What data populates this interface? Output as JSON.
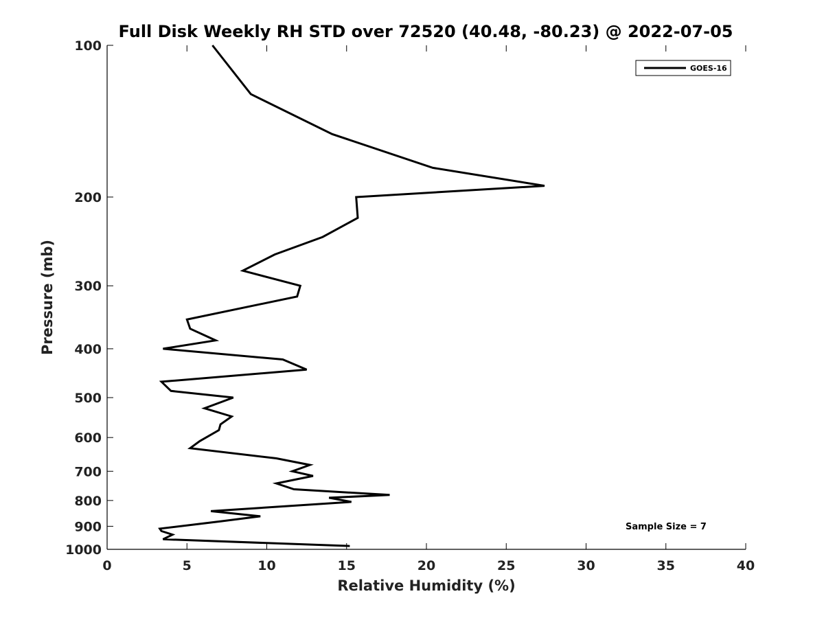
{
  "chart_data": {
    "type": "line",
    "title": "Full Disk Weekly RH STD over 72520 (40.48, -80.23) @ 2022-07-05",
    "xlabel": "Relative Humidity (%)",
    "ylabel": "Pressure (mb)",
    "xlim": [
      0,
      40
    ],
    "ylim": [
      100,
      1000
    ],
    "yscale": "log",
    "xticks": [
      0,
      5,
      10,
      15,
      20,
      25,
      30,
      35,
      40
    ],
    "yticks": [
      100,
      200,
      300,
      400,
      500,
      600,
      700,
      800,
      900,
      1000
    ],
    "legend_position": "top-right",
    "annotation": "Sample Size = 7",
    "series": [
      {
        "name": "GOES-16",
        "color": "#000000",
        "rh": [
          6.6,
          9.0,
          14.1,
          20.4,
          27.4,
          15.6,
          15.7,
          13.5,
          10.5,
          8.5,
          12.1,
          11.9,
          5.0,
          5.2,
          6.8,
          3.5,
          11.0,
          12.5,
          3.4,
          4.0,
          7.9,
          6.1,
          7.8,
          7.1,
          7.0,
          5.8,
          5.2,
          10.6,
          12.7,
          11.6,
          12.9,
          10.6,
          11.7,
          17.7,
          13.9,
          15.3,
          6.5,
          9.6,
          7.1,
          3.3,
          3.4,
          4.1,
          3.5,
          15.2
        ],
        "pressure": [
          100,
          125,
          150,
          175,
          190,
          200,
          220,
          240,
          260,
          280,
          300,
          315,
          350,
          365,
          385,
          400,
          420,
          440,
          465,
          485,
          500,
          525,
          545,
          565,
          580,
          610,
          630,
          660,
          680,
          700,
          715,
          740,
          760,
          780,
          790,
          805,
          840,
          860,
          880,
          910,
          920,
          935,
          955,
          985
        ]
      }
    ]
  }
}
